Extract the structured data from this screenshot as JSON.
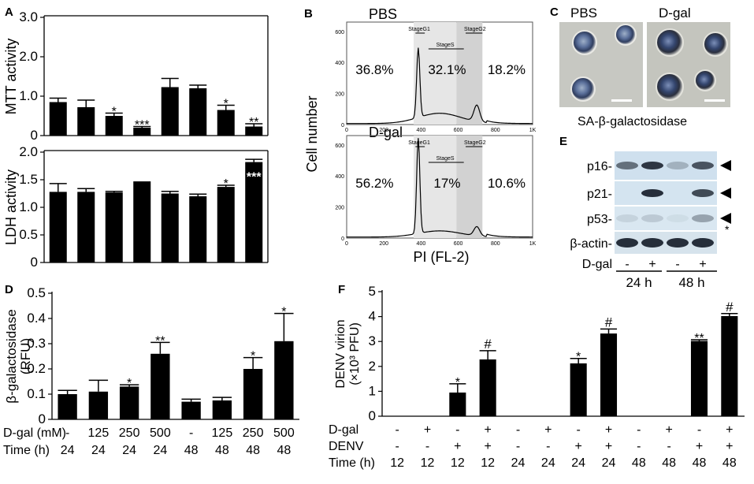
{
  "panels": {
    "A": "A",
    "B": "B",
    "C": "C",
    "D": "D",
    "E": "E",
    "F": "F"
  },
  "chart_data": [
    {
      "id": "A-top",
      "type": "bar",
      "ylabel": "MTT activity",
      "ylim": [
        0,
        3.0
      ],
      "yticks": [
        "0",
        "1.0",
        "2.0",
        "3.0"
      ],
      "ytick_values": [
        0,
        1,
        2,
        3
      ],
      "values": [
        0.85,
        0.72,
        0.5,
        0.2,
        1.23,
        1.2,
        0.65,
        0.23
      ],
      "errors": [
        0.1,
        0.18,
        0.07,
        0.03,
        0.22,
        0.08,
        0.12,
        0.07
      ],
      "annotations": [
        "",
        "",
        "*",
        "***",
        "",
        "",
        "*",
        "**"
      ]
    },
    {
      "id": "A-bottom",
      "type": "bar",
      "ylabel": "LDH activity",
      "ylim": [
        0,
        2.0
      ],
      "yticks": [
        "0",
        "0.5",
        "1.0",
        "1.5",
        "2.0"
      ],
      "ytick_values": [
        0,
        0.5,
        1,
        1.5,
        2
      ],
      "values": [
        1.28,
        1.28,
        1.27,
        1.47,
        1.25,
        1.2,
        1.37,
        1.82
      ],
      "errors": [
        0.15,
        0.06,
        0.02,
        0.0,
        0.04,
        0.04,
        0.03,
        0.05
      ],
      "annotations": [
        "",
        "",
        "",
        "",
        "",
        "",
        "*",
        "***"
      ]
    },
    {
      "id": "D",
      "type": "bar",
      "ylabel": "β-galactosidase",
      "ylabel2": "(RFU)",
      "ylim": [
        0,
        0.5
      ],
      "yticks": [
        "0",
        "0.1",
        "0.2",
        "0.3",
        "0.4",
        "0.5"
      ],
      "ytick_values": [
        0,
        0.1,
        0.2,
        0.3,
        0.4,
        0.5
      ],
      "values": [
        0.1,
        0.11,
        0.13,
        0.26,
        0.07,
        0.075,
        0.2,
        0.31
      ],
      "errors": [
        0.015,
        0.045,
        0.007,
        0.045,
        0.01,
        0.012,
        0.045,
        0.11
      ],
      "annotations": [
        "",
        "",
        "*",
        "**",
        "",
        "",
        "*",
        "*"
      ],
      "rows": [
        {
          "label": "D-gal (mM)",
          "values": [
            "-",
            "125",
            "250",
            "500",
            "-",
            "125",
            "250",
            "500"
          ]
        },
        {
          "label": "Time (h)",
          "values": [
            "24",
            "24",
            "24",
            "24",
            "48",
            "48",
            "48",
            "48"
          ]
        }
      ]
    },
    {
      "id": "F",
      "type": "bar",
      "ylabel": "DENV virion",
      "ylabel2": "(×10³ PFU)",
      "ylim": [
        0,
        5
      ],
      "yticks": [
        "0",
        "1",
        "2",
        "3",
        "4",
        "5"
      ],
      "ytick_values": [
        0,
        1,
        2,
        3,
        4,
        5
      ],
      "values": [
        0,
        0,
        0.95,
        2.28,
        0,
        0,
        2.12,
        3.32,
        0,
        0,
        3.02,
        4.02
      ],
      "errors": [
        0,
        0,
        0.35,
        0.35,
        0,
        0,
        0.2,
        0.18,
        0,
        0,
        0.05,
        0.1
      ],
      "annotations": [
        "",
        "",
        "*",
        "#",
        "",
        "",
        "*",
        "#",
        "",
        "",
        "**",
        "#"
      ],
      "rows": [
        {
          "label": "D-gal",
          "values": [
            "-",
            "+",
            "-",
            "+",
            "-",
            "+",
            "-",
            "+",
            "-",
            "+",
            "-",
            "+"
          ]
        },
        {
          "label": "DENV",
          "values": [
            "-",
            "-",
            "+",
            "+",
            "-",
            "-",
            "+",
            "+",
            "-",
            "-",
            "+",
            "+"
          ]
        },
        {
          "label": "Time (h)",
          "values": [
            "12",
            "12",
            "12",
            "12",
            "24",
            "24",
            "24",
            "24",
            "48",
            "48",
            "48",
            "48"
          ]
        }
      ]
    },
    {
      "id": "B",
      "type": "histogram",
      "ylabel": "Cell number",
      "xlabel": "PI (FL-2)",
      "plots": [
        {
          "title": "PBS",
          "yticks": [
            "0",
            "200",
            "400",
            "600"
          ],
          "xticks": [
            "0",
            "200",
            "400",
            "600",
            "800",
            "1K"
          ],
          "gates": [
            "StageG1",
            "StageS",
            "StageG2"
          ],
          "percents": [
            "36.8%",
            "32.1%",
            "18.2%"
          ]
        },
        {
          "title": "D-gal",
          "yticks": [
            "0",
            "200",
            "400",
            "600"
          ],
          "xticks": [
            "0",
            "200",
            "400",
            "600",
            "800",
            "1K"
          ],
          "gates": [
            "StageG1",
            "StageS",
            "StageG2"
          ],
          "percents": [
            "56.2%",
            "17%",
            "10.6%"
          ]
        }
      ]
    }
  ],
  "microscopy": {
    "left": "PBS",
    "right": "D-gal",
    "caption": "SA-β-galactosidase"
  },
  "blot": {
    "rows": [
      "p16-",
      "p21-",
      "p53-",
      "β-actin-"
    ],
    "dgal_label": "D-gal",
    "dgal_values": [
      "-",
      "+",
      "-",
      "+"
    ],
    "times": [
      "24 h",
      "48 h"
    ],
    "star": "*"
  }
}
